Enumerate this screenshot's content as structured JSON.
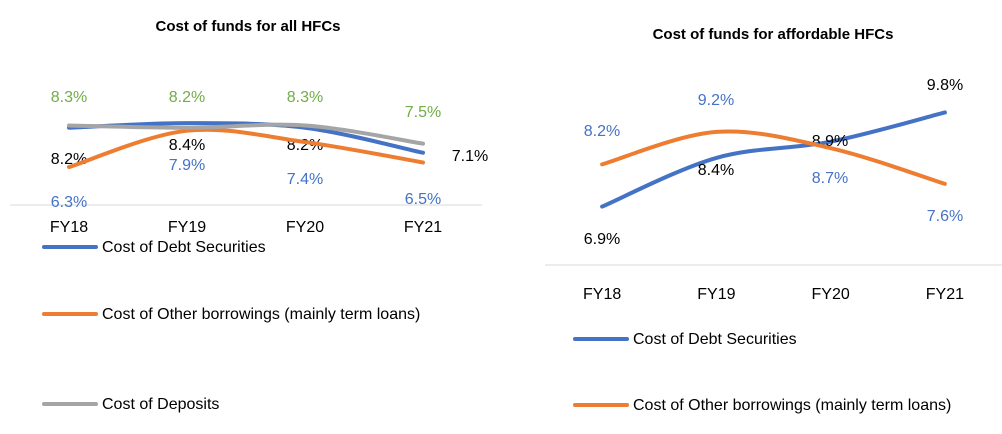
{
  "chart_data": [
    {
      "type": "line",
      "title": "Cost of funds for all HFCs",
      "smooth": true,
      "categories": [
        "FY18",
        "FY19",
        "FY20",
        "FY21"
      ],
      "ylim": [
        4.8,
        10.3
      ],
      "y2lim": [
        4.63,
        10.13
      ],
      "series": [
        {
          "name": "Cost of Debt Securities",
          "color": "#4472c4",
          "label_color": "#000000",
          "values": [
            8.2,
            8.4,
            8.2,
            7.1
          ],
          "value_labels": [
            "8.2%",
            "8.4%",
            "8.2%",
            "7.1%"
          ]
        },
        {
          "name": "Cost of Other borrowings (mainly term loans)",
          "color": "#ed7d31",
          "label_color": "#4472c4",
          "axis": "y2",
          "values": [
            6.3,
            7.9,
            7.4,
            6.5
          ],
          "value_labels": [
            "6.3%",
            "7.9%",
            "7.4%",
            "6.5%"
          ]
        },
        {
          "name": "Cost of Deposits",
          "color": "#a5a5a5",
          "label_color": "#70ad47",
          "values": [
            8.3,
            8.2,
            8.3,
            7.5
          ],
          "value_labels": [
            "8.3%",
            "8.2%",
            "8.3%",
            "7.5%"
          ]
        }
      ]
    },
    {
      "type": "line",
      "title": "Cost of funds for affordable HFCs",
      "smooth": true,
      "categories": [
        "FY18",
        "FY19",
        "FY20",
        "FY21"
      ],
      "ylim": [
        5.1,
        10.8
      ],
      "series": [
        {
          "name": "Cost of Debt Securities",
          "color": "#4472c4",
          "label_color": "#000000",
          "values": [
            6.9,
            8.4,
            8.9,
            9.8
          ],
          "value_labels": [
            "6.9%",
            "8.4%",
            "8.9%",
            "9.8%"
          ]
        },
        {
          "name": "Cost of Other borrowings (mainly term loans)",
          "color": "#ed7d31",
          "label_color": "#4472c4",
          "values": [
            8.2,
            9.2,
            8.7,
            7.6
          ],
          "value_labels": [
            "8.2%",
            "9.2%",
            "8.7%",
            "7.6%"
          ]
        }
      ]
    }
  ]
}
